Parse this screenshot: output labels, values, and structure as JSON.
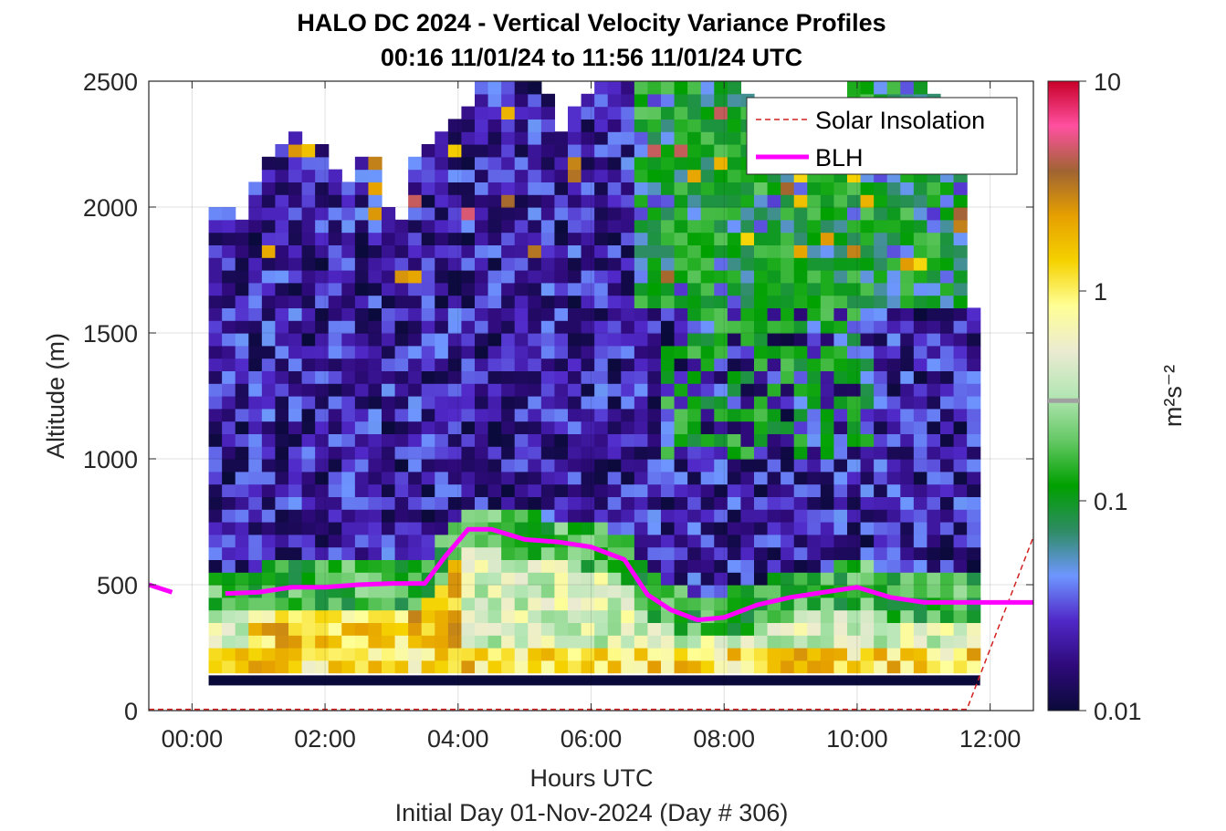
{
  "chart_data": {
    "type": "heatmap",
    "title": "HALO DC 2024 - Vertical Velocity Variance Profiles",
    "subtitle": "00:16 11/01/24 to 11:56 11/01/24  UTC",
    "xlabel": "Hours UTC",
    "xlabel2": "Initial Day 01-Nov-2024 (Day # 306)",
    "ylabel": "Altitude (m)",
    "xlim": [
      -0.65,
      12.65
    ],
    "ylim": [
      0,
      2500
    ],
    "x_ticks": [
      0,
      2,
      4,
      6,
      8,
      10,
      12
    ],
    "x_tick_labels": [
      "00:00",
      "02:00",
      "04:00",
      "06:00",
      "08:00",
      "10:00",
      "12:00"
    ],
    "y_ticks": [
      0,
      500,
      1000,
      1500,
      2000,
      2500
    ],
    "y_tick_labels": [
      "0",
      "500",
      "1000",
      "1500",
      "2000",
      "2500"
    ],
    "grid": true,
    "colorbar": {
      "label": "m²s⁻²",
      "scale": "log",
      "range": [
        0.01,
        10
      ],
      "ticks": [
        0.01,
        0.1,
        1,
        10
      ],
      "tick_labels": [
        "0.01",
        "0.1",
        "1",
        "10"
      ],
      "marker_value": 0.3,
      "colormap_stops": [
        "#0a0a3a",
        "#2e0a7a",
        "#5028c8",
        "#6e96ff",
        "#2e8c64",
        "#00a000",
        "#64c864",
        "#b4e6b4",
        "#ebebd2",
        "#ffff96",
        "#f5d200",
        "#e6a000",
        "#a06432",
        "#ff50a0",
        "#c80028"
      ]
    },
    "legend": {
      "placement": "top-right",
      "entries": [
        {
          "label": "Solar Insolation",
          "color": "#d22020",
          "style": "dashed"
        },
        {
          "label": "BLH",
          "color": "#ff00ff",
          "style": "solid"
        }
      ]
    },
    "series": [
      {
        "name": "BLH",
        "color": "#ff00ff",
        "x": [
          -0.65,
          -0.3,
          0.25,
          0.5,
          1.0,
          1.5,
          2.0,
          2.5,
          3.0,
          3.5,
          3.8,
          4.15,
          4.5,
          5.0,
          5.5,
          6.0,
          6.5,
          6.85,
          7.2,
          7.6,
          8.0,
          8.5,
          9.0,
          9.5,
          10.0,
          10.5,
          11.0,
          11.5,
          12.0,
          12.65
        ],
        "y": [
          500,
          470,
          470,
          465,
          470,
          490,
          490,
          500,
          505,
          505,
          610,
          720,
          720,
          680,
          670,
          650,
          600,
          460,
          400,
          360,
          370,
          420,
          450,
          470,
          490,
          450,
          430,
          430,
          430,
          430
        ]
      },
      {
        "name": "Solar Insolation",
        "color": "#d22020",
        "x": [
          -0.65,
          11.65,
          12.65
        ],
        "y": [
          5,
          5,
          690
        ]
      }
    ],
    "heatmap": {
      "x_start": 0.25,
      "column_width": 0.2,
      "columns": 58,
      "y_bin_height": 50,
      "surface_band": {
        "y": [
          100,
          140
        ],
        "value": 0.01
      },
      "column_top_altitudes": [
        2000,
        1960,
        1920,
        2080,
        2180,
        2240,
        2300,
        2250,
        2220,
        2140,
        2100,
        2200,
        2160,
        1980,
        1950,
        2200,
        2240,
        2280,
        2320,
        2400,
        2500,
        2520,
        2600,
        2660,
        2540,
        2420,
        2280,
        2400,
        2450,
        2560,
        2620,
        2520,
        2520,
        2580,
        2600,
        2540,
        2480,
        2560,
        2600,
        2500,
        2440,
        2400,
        2380,
        2360,
        2320,
        2300,
        2280,
        2400,
        2600,
        2640,
        2620,
        2580,
        2540,
        2500,
        2420,
        2300,
        2200,
        1580
      ]
    }
  }
}
